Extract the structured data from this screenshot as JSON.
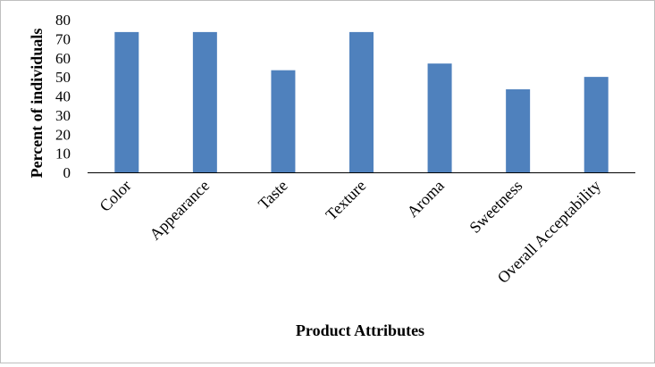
{
  "chart_data": {
    "type": "bar",
    "categories": [
      "Color",
      "Appearance",
      "Taste",
      "Texture",
      "Aroma",
      "Sweetness",
      "Overall Acceptability"
    ],
    "values": [
      73.5,
      73.5,
      53.5,
      73.5,
      57,
      43.5,
      50
    ],
    "xlabel": "Product Attributes",
    "ylabel": "Percent of individuals",
    "ylim": [
      0,
      80
    ],
    "yticks": [
      0,
      10,
      20,
      30,
      40,
      50,
      60,
      70,
      80
    ],
    "ytick_labels": [
      "0",
      "10",
      "20",
      "30",
      "40",
      "50",
      "60",
      "70",
      "80"
    ],
    "grid": false,
    "legend": "none",
    "bar_color": "#4f81bd"
  }
}
